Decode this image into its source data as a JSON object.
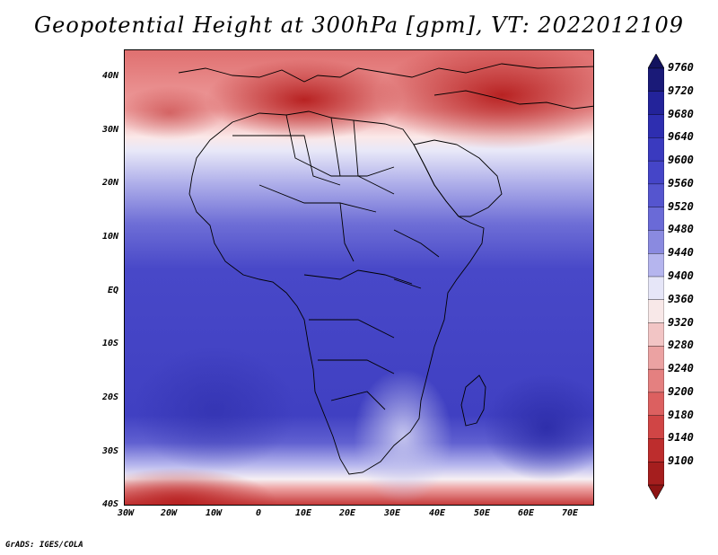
{
  "title": "Geopotential Height at 300hPa [gpm], VT: 2022012109",
  "credit": "GrADS: IGES/COLA",
  "y_ticks": [
    "40N",
    "30N",
    "20N",
    "10N",
    "EQ",
    "10S",
    "20S",
    "30S",
    "40S"
  ],
  "x_ticks": [
    "30W",
    "20W",
    "10W",
    "0",
    "10E",
    "20E",
    "30E",
    "40E",
    "50E",
    "60E",
    "70E"
  ],
  "colorbar": {
    "labels": [
      "9760",
      "9720",
      "9680",
      "9640",
      "9600",
      "9560",
      "9520",
      "9480",
      "9440",
      "9400",
      "9360",
      "9320",
      "9280",
      "9240",
      "9200",
      "9180",
      "9140",
      "9100"
    ],
    "colors": [
      "#1a1a78",
      "#23239a",
      "#2e2eb0",
      "#3a3abf",
      "#4545c8",
      "#5555cf",
      "#6a6ad7",
      "#8a8ae0",
      "#b5b5ee",
      "#e6e6f8",
      "#f8e8e8",
      "#f2c5c5",
      "#eba2a2",
      "#e48080",
      "#dc6060",
      "#d04545",
      "#bd2d2d",
      "#a51e1e"
    ],
    "top_color": "#12125e",
    "bottom_color": "#8e1414"
  },
  "chart_data": {
    "type": "heatmap",
    "title": "Geopotential Height at 300hPa [gpm], VT: 2022012109",
    "variable": "Geopotential Height",
    "level": "300hPa",
    "units": "gpm",
    "valid_time": "2022012109",
    "lon_range": [
      -30,
      75
    ],
    "lat_range": [
      -40,
      45
    ],
    "contour_levels": [
      9100,
      9140,
      9180,
      9200,
      9240,
      9280,
      9320,
      9360,
      9400,
      9440,
      9480,
      9520,
      9560,
      9600,
      9640,
      9680,
      9720,
      9760
    ]
  }
}
